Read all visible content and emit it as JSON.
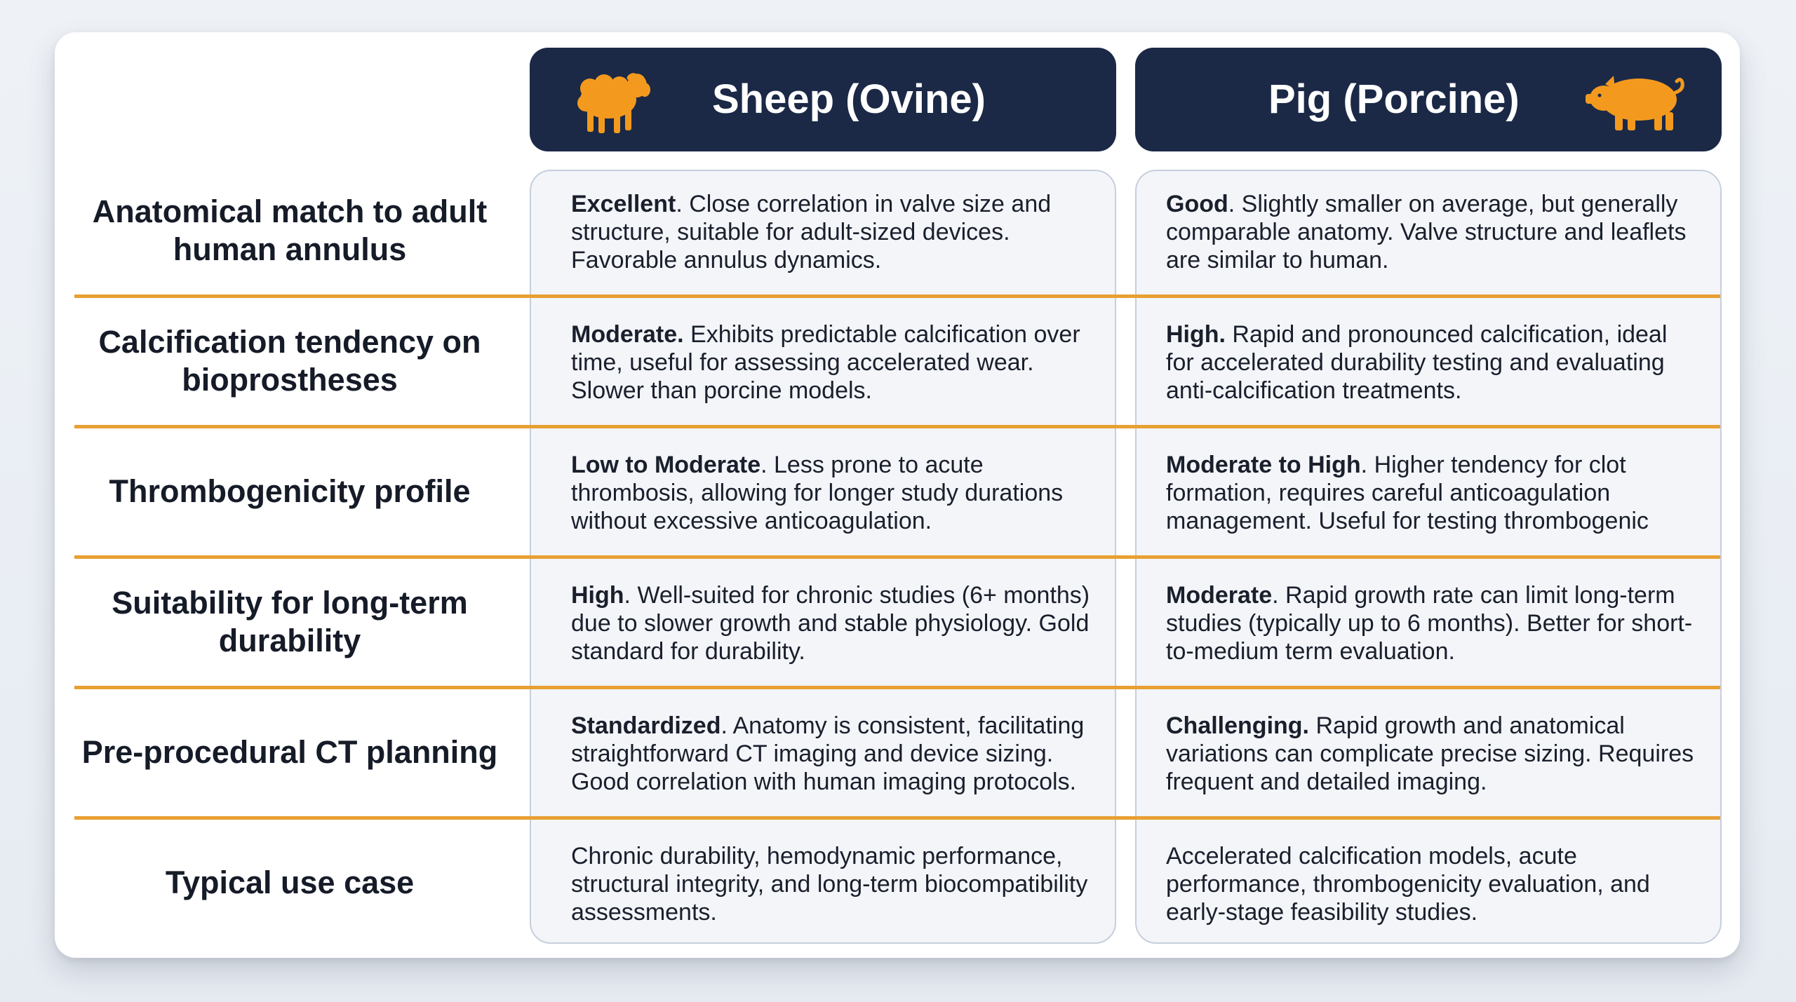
{
  "columns": {
    "sheep": {
      "title": "Sheep (Ovine)",
      "icon": "sheep-icon",
      "icon_color": "#f39a1e"
    },
    "pig": {
      "title": "Pig (Porcine)",
      "icon": "pig-icon",
      "icon_color": "#f39a1e"
    }
  },
  "colors": {
    "header_bg": "#1b2947",
    "divider": "#e8a032",
    "panel_bg": "#f3f5f9"
  },
  "rows": [
    {
      "label": "Anatomical match to adult human annulus",
      "sheep": {
        "lead": "Excellent",
        "text": ". Close correlation in valve size and structure, suitable for adult-sized devices. Favorable annulus dynamics."
      },
      "pig": {
        "lead": "Good",
        "text": ". Slightly smaller on average, but generally comparable anatomy. Valve structure and leaflets are similar to human."
      }
    },
    {
      "label": "Calcification tendency on bioprostheses",
      "sheep": {
        "lead": "Moderate.",
        "text": " Exhibits predictable calcification over time, useful for assessing accelerated wear. Slower than porcine models."
      },
      "pig": {
        "lead": "High.",
        "text": " Rapid and pronounced calcification, ideal for accelerated durability testing and evaluating anti-calcification treatments."
      }
    },
    {
      "label": "Thrombogenicity profile",
      "sheep": {
        "lead": "Low to Moderate",
        "text": ". Less prone to acute thrombosis, allowing for longer study durations without excessive anticoagulation."
      },
      "pig": {
        "lead": "Moderate to High",
        "text": ". Higher tendency for clot formation, requires careful anticoagulation management. Useful for testing thrombogenic"
      }
    },
    {
      "label": "Suitability for long-term durability",
      "sheep": {
        "lead": "High",
        "text": ". Well-suited for chronic studies (6+ months) due to slower growth and stable physiology. Gold standard for durability."
      },
      "pig": {
        "lead": "Moderate",
        "text": ". Rapid growth rate can limit long-term studies (typically up to 6 months). Better for short-to-medium term evaluation."
      }
    },
    {
      "label": "Pre-procedural CT planning",
      "sheep": {
        "lead": "Standardized",
        "text": ". Anatomy is consistent, facilitating straightforward CT imaging and device sizing. Good correlation with human imaging protocols."
      },
      "pig": {
        "lead": "Challenging.",
        "text": " Rapid growth and anatomical variations can complicate precise sizing. Requires frequent and detailed imaging."
      }
    },
    {
      "label": "Typical use case",
      "sheep": {
        "lead": "",
        "text": "Chronic durability, hemodynamic performance, structural integrity, and long-term biocompatibility assessments."
      },
      "pig": {
        "lead": "",
        "text": "Accelerated calcification models, acute performance, thrombogenicity evaluation, and early-stage feasibility studies."
      }
    }
  ]
}
